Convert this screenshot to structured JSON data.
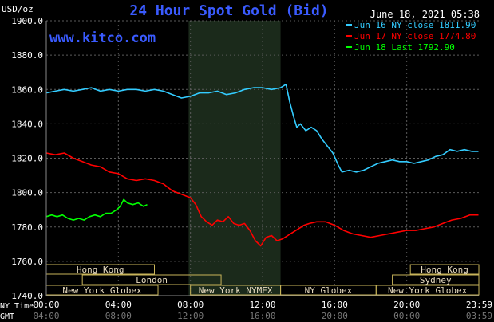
{
  "chart_data": {
    "type": "line",
    "title": "24 Hour Spot Gold (Bid)",
    "unit_label": "USD/oz",
    "timestamp": "June 18, 2021 05:38",
    "watermark": "www.kitco.com",
    "ylim": [
      1740,
      1900
    ],
    "y_ticks": [
      "1900.0",
      "1880.0",
      "1860.0",
      "1840.0",
      "1820.0",
      "1800.0",
      "1780.0",
      "1760.0",
      "1740.0"
    ],
    "x_row1_label": "NY Time",
    "x_row2_label": "GMT",
    "x_ticks_ny": [
      "00:00",
      "04:00",
      "08:00",
      "12:00",
      "16:00",
      "20:00",
      "23:59"
    ],
    "x_ticks_gmt": [
      "04:00",
      "08:00",
      "12:00",
      "16:00",
      "20:00",
      "00:00",
      "03:59"
    ],
    "market_labels": [
      "Hong Kong",
      "London",
      "New York Globex",
      "New York NYMEX",
      "NY Globex",
      "Hong Kong",
      "Sydney",
      "New York Globex"
    ],
    "shaded_session_hours": [
      7.9,
      13.0
    ],
    "series": [
      {
        "name": "Jun 16 NY close 1811.90",
        "color": "#33ccff",
        "points": [
          [
            0,
            1858
          ],
          [
            0.5,
            1859
          ],
          [
            1,
            1860
          ],
          [
            1.5,
            1859
          ],
          [
            2,
            1860
          ],
          [
            2.5,
            1861
          ],
          [
            3,
            1859
          ],
          [
            3.5,
            1860
          ],
          [
            4,
            1859
          ],
          [
            4.5,
            1860
          ],
          [
            5,
            1860
          ],
          [
            5.5,
            1859
          ],
          [
            6,
            1860
          ],
          [
            6.5,
            1859
          ],
          [
            7,
            1857
          ],
          [
            7.5,
            1855
          ],
          [
            8,
            1856
          ],
          [
            8.5,
            1858
          ],
          [
            9,
            1858
          ],
          [
            9.5,
            1859
          ],
          [
            10,
            1857
          ],
          [
            10.5,
            1858
          ],
          [
            11,
            1860
          ],
          [
            11.5,
            1861
          ],
          [
            12,
            1861
          ],
          [
            12.5,
            1860
          ],
          [
            13,
            1861
          ],
          [
            13.3,
            1863
          ],
          [
            13.5,
            1853
          ],
          [
            13.7,
            1845
          ],
          [
            13.9,
            1838
          ],
          [
            14.1,
            1840
          ],
          [
            14.4,
            1836
          ],
          [
            14.7,
            1838
          ],
          [
            15,
            1836
          ],
          [
            15.3,
            1831
          ],
          [
            15.6,
            1827
          ],
          [
            15.9,
            1823
          ],
          [
            16.2,
            1816
          ],
          [
            16.4,
            1812
          ],
          [
            16.8,
            1813
          ],
          [
            17.2,
            1812
          ],
          [
            17.6,
            1813
          ],
          [
            18,
            1815
          ],
          [
            18.4,
            1817
          ],
          [
            18.8,
            1818
          ],
          [
            19.2,
            1819
          ],
          [
            19.6,
            1818
          ],
          [
            20,
            1818
          ],
          [
            20.4,
            1817
          ],
          [
            20.8,
            1818
          ],
          [
            21.2,
            1819
          ],
          [
            21.6,
            1821
          ],
          [
            22,
            1822
          ],
          [
            22.4,
            1825
          ],
          [
            22.8,
            1824
          ],
          [
            23.2,
            1825
          ],
          [
            23.6,
            1824
          ],
          [
            23.98,
            1824
          ]
        ]
      },
      {
        "name": "Jun 17 NY close 1774.80",
        "color": "#ff0000",
        "points": [
          [
            0,
            1823
          ],
          [
            0.5,
            1822
          ],
          [
            1,
            1823
          ],
          [
            1.5,
            1820
          ],
          [
            2,
            1818
          ],
          [
            2.5,
            1816
          ],
          [
            3,
            1815
          ],
          [
            3.5,
            1812
          ],
          [
            4,
            1811
          ],
          [
            4.5,
            1808
          ],
          [
            5,
            1807
          ],
          [
            5.5,
            1808
          ],
          [
            6,
            1807
          ],
          [
            6.5,
            1805
          ],
          [
            7,
            1801
          ],
          [
            7.5,
            1799
          ],
          [
            8,
            1797
          ],
          [
            8.3,
            1793
          ],
          [
            8.6,
            1786
          ],
          [
            8.9,
            1783
          ],
          [
            9.2,
            1781
          ],
          [
            9.5,
            1784
          ],
          [
            9.8,
            1783
          ],
          [
            10.1,
            1786
          ],
          [
            10.4,
            1782
          ],
          [
            10.7,
            1781
          ],
          [
            11,
            1782
          ],
          [
            11.3,
            1778
          ],
          [
            11.6,
            1772
          ],
          [
            11.9,
            1769
          ],
          [
            12.2,
            1774
          ],
          [
            12.5,
            1775
          ],
          [
            12.8,
            1772
          ],
          [
            13.1,
            1773
          ],
          [
            13.4,
            1775
          ],
          [
            13.7,
            1777
          ],
          [
            14,
            1779
          ],
          [
            14.3,
            1781
          ],
          [
            14.6,
            1782
          ],
          [
            15,
            1783
          ],
          [
            15.5,
            1783
          ],
          [
            16,
            1781
          ],
          [
            16.5,
            1778
          ],
          [
            17,
            1776
          ],
          [
            17.5,
            1775
          ],
          [
            18,
            1774
          ],
          [
            18.5,
            1775
          ],
          [
            19,
            1776
          ],
          [
            19.5,
            1777
          ],
          [
            20,
            1778
          ],
          [
            20.5,
            1778
          ],
          [
            21,
            1779
          ],
          [
            21.5,
            1780
          ],
          [
            22,
            1782
          ],
          [
            22.5,
            1784
          ],
          [
            23,
            1785
          ],
          [
            23.5,
            1787
          ],
          [
            23.98,
            1787
          ]
        ]
      },
      {
        "name": "Jun 18 Last 1792.90",
        "color": "#00ff00",
        "points": [
          [
            0,
            1786
          ],
          [
            0.3,
            1787
          ],
          [
            0.6,
            1786
          ],
          [
            0.9,
            1787
          ],
          [
            1.2,
            1785
          ],
          [
            1.5,
            1784
          ],
          [
            1.8,
            1785
          ],
          [
            2.1,
            1784
          ],
          [
            2.4,
            1786
          ],
          [
            2.7,
            1787
          ],
          [
            3,
            1786
          ],
          [
            3.3,
            1788
          ],
          [
            3.6,
            1788
          ],
          [
            3.9,
            1790
          ],
          [
            4.1,
            1792
          ],
          [
            4.3,
            1796
          ],
          [
            4.5,
            1794
          ],
          [
            4.8,
            1793
          ],
          [
            5.1,
            1794
          ],
          [
            5.4,
            1792
          ],
          [
            5.6,
            1793
          ]
        ]
      }
    ]
  }
}
